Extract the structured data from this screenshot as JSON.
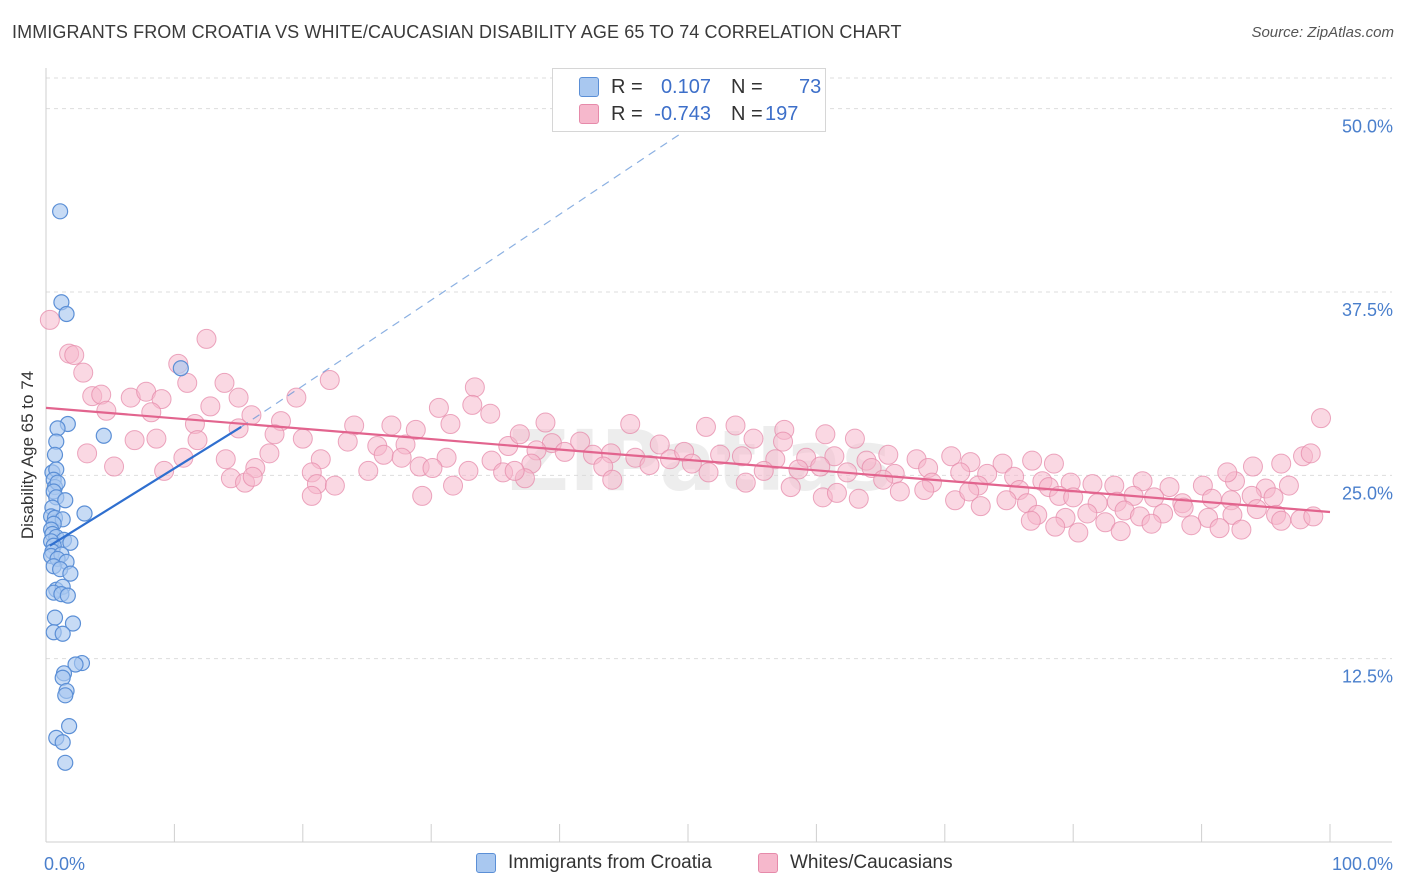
{
  "title": "IMMIGRANTS FROM CROATIA VS WHITE/CAUCASIAN DISABILITY AGE 65 TO 74 CORRELATION CHART",
  "source": "Source: ZipAtlas.com",
  "watermark": "ZIPatlas",
  "colors": {
    "blue_fill": "#a9c8f0",
    "blue_stroke": "#5b8fd6",
    "blue_line": "#2f6fcf",
    "pink_fill": "#f6b8cc",
    "pink_stroke": "#e68aaa",
    "pink_line": "#e2648e",
    "grid": "#dddddd",
    "axis_label": "#4a7fcc"
  },
  "stats": {
    "blue": {
      "r_label": "R =",
      "r_value": "0.107",
      "n_label": "N =",
      "n_value": "73"
    },
    "pink": {
      "r_label": "R =",
      "r_value": "-0.743",
      "n_label": "N =",
      "n_value": "197"
    }
  },
  "legend": {
    "blue": "Immigrants from Croatia",
    "pink": "Whites/Caucasians"
  },
  "chart_data": {
    "type": "scatter",
    "title": "IMMIGRANTS FROM CROATIA VS WHITE/CAUCASIAN DISABILITY AGE 65 TO 74 CORRELATION CHART",
    "xlabel": "",
    "ylabel": "Disability Age 65 to 74",
    "xlim": [
      0,
      100
    ],
    "ylim": [
      0,
      52.5
    ],
    "x_tick_labels": [
      "0.0%",
      "100.0%"
    ],
    "y_ticks": [
      12.5,
      25.0,
      37.5,
      50.0
    ],
    "y_tick_labels": [
      "12.5%",
      "25.0%",
      "37.5%",
      "50.0%"
    ],
    "legend_position": "bottom-center",
    "series": [
      {
        "name": "Immigrants from Croatia",
        "color": "#5b8fd6",
        "trend": {
          "x": [
            0.3,
            15.2
          ],
          "y": [
            20.2,
            28.3
          ]
        },
        "trend_extension": {
          "x": [
            15.2,
            52
          ],
          "y": [
            28.3,
            49.8
          ]
        },
        "points": [
          [
            1.1,
            43
          ],
          [
            1.2,
            36.8
          ],
          [
            1.6,
            36
          ],
          [
            10.5,
            32.3
          ],
          [
            1.7,
            28.5
          ],
          [
            0.9,
            28.2
          ],
          [
            4.5,
            27.7
          ],
          [
            0.8,
            27.3
          ],
          [
            0.7,
            26.4
          ],
          [
            0.5,
            25.2
          ],
          [
            0.8,
            25.4
          ],
          [
            0.6,
            24.7
          ],
          [
            0.7,
            24.2
          ],
          [
            0.9,
            24.5
          ],
          [
            0.6,
            23.9
          ],
          [
            0.8,
            23.5
          ],
          [
            1.5,
            23.3
          ],
          [
            0.5,
            22.8
          ],
          [
            3,
            22.4
          ],
          [
            0.4,
            22.2
          ],
          [
            0.7,
            22.1
          ],
          [
            1.3,
            22
          ],
          [
            0.6,
            21.7
          ],
          [
            0.4,
            21.3
          ],
          [
            0.5,
            21
          ],
          [
            0.8,
            20.8
          ],
          [
            1.4,
            20.6
          ],
          [
            1.9,
            20.4
          ],
          [
            0.4,
            20.5
          ],
          [
            0.6,
            20.2
          ],
          [
            0.5,
            19.8
          ],
          [
            0.4,
            19.5
          ],
          [
            1.2,
            19.6
          ],
          [
            0.9,
            19.3
          ],
          [
            1.6,
            19.1
          ],
          [
            0.6,
            18.8
          ],
          [
            1.1,
            18.6
          ],
          [
            1.9,
            18.3
          ],
          [
            0.8,
            17.2
          ],
          [
            1.3,
            17.4
          ],
          [
            0.6,
            17
          ],
          [
            1.2,
            16.9
          ],
          [
            1.7,
            16.8
          ],
          [
            0.7,
            15.3
          ],
          [
            2.1,
            14.9
          ],
          [
            0.6,
            14.3
          ],
          [
            1.3,
            14.2
          ],
          [
            2.8,
            12.2
          ],
          [
            2.3,
            12.1
          ],
          [
            1.4,
            11.5
          ],
          [
            1.3,
            11.2
          ],
          [
            1.6,
            10.3
          ],
          [
            1.5,
            10
          ],
          [
            1.8,
            7.9
          ],
          [
            0.8,
            7.1
          ],
          [
            1.3,
            6.8
          ],
          [
            1.5,
            5.4
          ]
        ]
      },
      {
        "name": "Whites/Caucasians",
        "color": "#e68aaa",
        "trend": {
          "x": [
            0,
            100
          ],
          "y": [
            29.6,
            22.5
          ]
        },
        "points": [
          [
            0.3,
            35.6
          ],
          [
            1.8,
            33.3
          ],
          [
            2.2,
            33.2
          ],
          [
            12.5,
            34.3
          ],
          [
            10.3,
            32.6
          ],
          [
            2.9,
            32
          ],
          [
            11,
            31.3
          ],
          [
            3.6,
            30.4
          ],
          [
            4.3,
            30.5
          ],
          [
            6.6,
            30.3
          ],
          [
            7.8,
            30.7
          ],
          [
            9,
            30.2
          ],
          [
            13.9,
            31.3
          ],
          [
            15,
            30.3
          ],
          [
            19.5,
            30.3
          ],
          [
            22.1,
            31.5
          ],
          [
            33.4,
            31
          ],
          [
            4.7,
            29.4
          ],
          [
            8.2,
            29.3
          ],
          [
            12.8,
            29.7
          ],
          [
            16,
            29.1
          ],
          [
            18.3,
            28.7
          ],
          [
            30.6,
            29.6
          ],
          [
            33.2,
            29.8
          ],
          [
            34.6,
            29.2
          ],
          [
            11.6,
            28.5
          ],
          [
            15,
            28.2
          ],
          [
            17.8,
            27.8
          ],
          [
            24,
            28.4
          ],
          [
            26.9,
            28.4
          ],
          [
            28.8,
            28.1
          ],
          [
            31.5,
            28.5
          ],
          [
            38.9,
            28.6
          ],
          [
            45.5,
            28.5
          ],
          [
            51.4,
            28.3
          ],
          [
            53.7,
            28.4
          ],
          [
            57.5,
            28.1
          ],
          [
            6.9,
            27.4
          ],
          [
            8.6,
            27.5
          ],
          [
            11.8,
            27.4
          ],
          [
            20,
            27.5
          ],
          [
            23.5,
            27.3
          ],
          [
            25.8,
            27
          ],
          [
            28,
            27.1
          ],
          [
            36,
            27
          ],
          [
            36.9,
            27.8
          ],
          [
            39.4,
            27.2
          ],
          [
            41.6,
            27.3
          ],
          [
            47.8,
            27.1
          ],
          [
            55.1,
            27.5
          ],
          [
            57.4,
            27.3
          ],
          [
            60.7,
            27.8
          ],
          [
            63,
            27.5
          ],
          [
            3.2,
            26.5
          ],
          [
            10.7,
            26.2
          ],
          [
            14,
            26.1
          ],
          [
            17.4,
            26.5
          ],
          [
            21.4,
            26.1
          ],
          [
            26.3,
            26.4
          ],
          [
            27.7,
            26.2
          ],
          [
            31.2,
            26.2
          ],
          [
            34.7,
            26
          ],
          [
            38.2,
            26.7
          ],
          [
            40.4,
            26.6
          ],
          [
            42.6,
            26.4
          ],
          [
            44,
            26.5
          ],
          [
            45.9,
            26.2
          ],
          [
            48.6,
            26.1
          ],
          [
            49.7,
            26.6
          ],
          [
            52.5,
            26.4
          ],
          [
            54.2,
            26.3
          ],
          [
            56.8,
            26.1
          ],
          [
            59.2,
            26.2
          ],
          [
            61.4,
            26.3
          ],
          [
            63.9,
            26
          ],
          [
            65.6,
            26.4
          ],
          [
            67.8,
            26.1
          ],
          [
            70.5,
            26.3
          ],
          [
            72,
            25.9
          ],
          [
            74.5,
            25.8
          ],
          [
            76.8,
            26
          ],
          [
            78.5,
            25.8
          ],
          [
            5.3,
            25.6
          ],
          [
            9.2,
            25.3
          ],
          [
            16.3,
            25.5
          ],
          [
            20.7,
            25.2
          ],
          [
            25.1,
            25.3
          ],
          [
            29.1,
            25.6
          ],
          [
            30.1,
            25.5
          ],
          [
            32.9,
            25.3
          ],
          [
            35.6,
            25.2
          ],
          [
            37.8,
            25.8
          ],
          [
            43.4,
            25.6
          ],
          [
            47,
            25.7
          ],
          [
            50.3,
            25.8
          ],
          [
            51.6,
            25.2
          ],
          [
            55.9,
            25.3
          ],
          [
            58.6,
            25.4
          ],
          [
            60.3,
            25.6
          ],
          [
            62.4,
            25.2
          ],
          [
            64.3,
            25.5
          ],
          [
            66.1,
            25.1
          ],
          [
            68.7,
            25.5
          ],
          [
            71.2,
            25.2
          ],
          [
            73.3,
            25.1
          ],
          [
            75.4,
            24.9
          ],
          [
            77.6,
            24.6
          ],
          [
            14.4,
            24.8
          ],
          [
            15.5,
            24.5
          ],
          [
            16.1,
            24.9
          ],
          [
            21.1,
            24.4
          ],
          [
            22.5,
            24.3
          ],
          [
            31.7,
            24.3
          ],
          [
            37.3,
            24.8
          ],
          [
            44.1,
            24.7
          ],
          [
            54.5,
            24.5
          ],
          [
            58,
            24.2
          ],
          [
            65.2,
            24.7
          ],
          [
            69,
            24.5
          ],
          [
            72.6,
            24.3
          ],
          [
            75.8,
            24
          ],
          [
            78.1,
            24.2
          ],
          [
            79.8,
            24.5
          ],
          [
            81.5,
            24.4
          ],
          [
            83.2,
            24.3
          ],
          [
            85.4,
            24.6
          ],
          [
            87.5,
            24.2
          ],
          [
            90.1,
            24.3
          ],
          [
            92.6,
            24.6
          ],
          [
            95,
            24.1
          ],
          [
            96.8,
            24.3
          ],
          [
            92,
            25.2
          ],
          [
            94,
            25.6
          ],
          [
            96.2,
            25.8
          ],
          [
            97.9,
            26.3
          ],
          [
            98.5,
            26.5
          ],
          [
            99.3,
            28.9
          ],
          [
            20.7,
            23.6
          ],
          [
            29.3,
            23.6
          ],
          [
            63.3,
            23.4
          ],
          [
            70.8,
            23.3
          ],
          [
            72.8,
            22.9
          ],
          [
            74.8,
            23.3
          ],
          [
            76.4,
            23.1
          ],
          [
            78.9,
            23.6
          ],
          [
            80,
            23.5
          ],
          [
            81.9,
            23.1
          ],
          [
            83.4,
            23.2
          ],
          [
            84.7,
            23.6
          ],
          [
            86.3,
            23.5
          ],
          [
            88.5,
            23.1
          ],
          [
            90.8,
            23.4
          ],
          [
            92.3,
            23.3
          ],
          [
            93.9,
            23.6
          ],
          [
            95.6,
            23.5
          ],
          [
            81.1,
            22.4
          ],
          [
            84,
            22.6
          ],
          [
            85.2,
            22.2
          ],
          [
            87,
            22.4
          ],
          [
            88.6,
            22.8
          ],
          [
            90.5,
            22.1
          ],
          [
            92.4,
            22.3
          ],
          [
            94.3,
            22.7
          ],
          [
            95.8,
            22.3
          ],
          [
            77.2,
            22.3
          ],
          [
            79.4,
            22.1
          ],
          [
            82.5,
            21.8
          ],
          [
            86.1,
            21.7
          ],
          [
            89.2,
            21.6
          ],
          [
            91.4,
            21.4
          ],
          [
            93.1,
            21.3
          ],
          [
            96.2,
            21.9
          ],
          [
            97.7,
            22
          ],
          [
            98.7,
            22.2
          ],
          [
            76.7,
            21.9
          ],
          [
            78.6,
            21.5
          ],
          [
            80.4,
            21.1
          ],
          [
            83.7,
            21.2
          ],
          [
            60.5,
            23.5
          ],
          [
            61.6,
            23.8
          ],
          [
            66.5,
            23.9
          ],
          [
            68.4,
            24
          ],
          [
            71.9,
            23.9
          ],
          [
            36.5,
            25.3
          ]
        ]
      }
    ]
  }
}
